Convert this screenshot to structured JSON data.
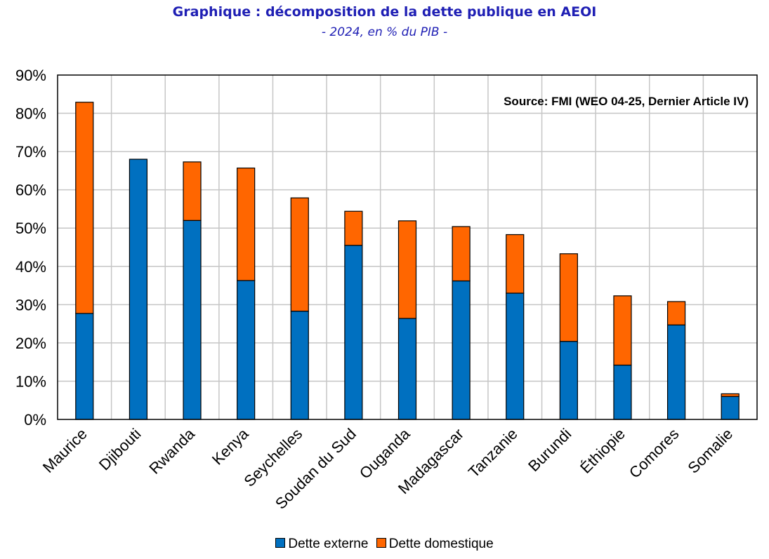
{
  "chart_data": {
    "type": "bar",
    "stacked": true,
    "title": "Graphique : décomposition de la dette publique en AEOI",
    "subtitle": "- 2024, en % du PIB -",
    "annotation": "Source: FMI (WEO 04-25, Dernier Article IV)",
    "categories": [
      "Maurice",
      "Djibouti",
      "Rwanda",
      "Kenya",
      "Seychelles",
      "Soudan du Sud",
      "Ouganda",
      "Madagascar",
      "Tanzanie",
      "Burundi",
      "Éthiopie",
      "Comores",
      "Somalie"
    ],
    "series": [
      {
        "name": "Dette externe",
        "color": "#0070c0",
        "values": [
          27.7,
          68.0,
          52.0,
          36.3,
          28.3,
          45.5,
          26.4,
          36.2,
          33.0,
          20.4,
          14.2,
          24.7,
          6.0
        ]
      },
      {
        "name": "Dette domestique",
        "color": "#ff6600",
        "values": [
          55.2,
          0,
          15.3,
          29.4,
          29.6,
          8.9,
          25.5,
          14.2,
          15.3,
          22.9,
          18.1,
          6.1,
          0.7
        ]
      }
    ],
    "y_ticks": [
      "0%",
      "10%",
      "20%",
      "30%",
      "40%",
      "50%",
      "60%",
      "70%",
      "80%",
      "90%"
    ],
    "ylim": [
      0,
      90
    ],
    "grid": true,
    "legend_position": "bottom"
  }
}
